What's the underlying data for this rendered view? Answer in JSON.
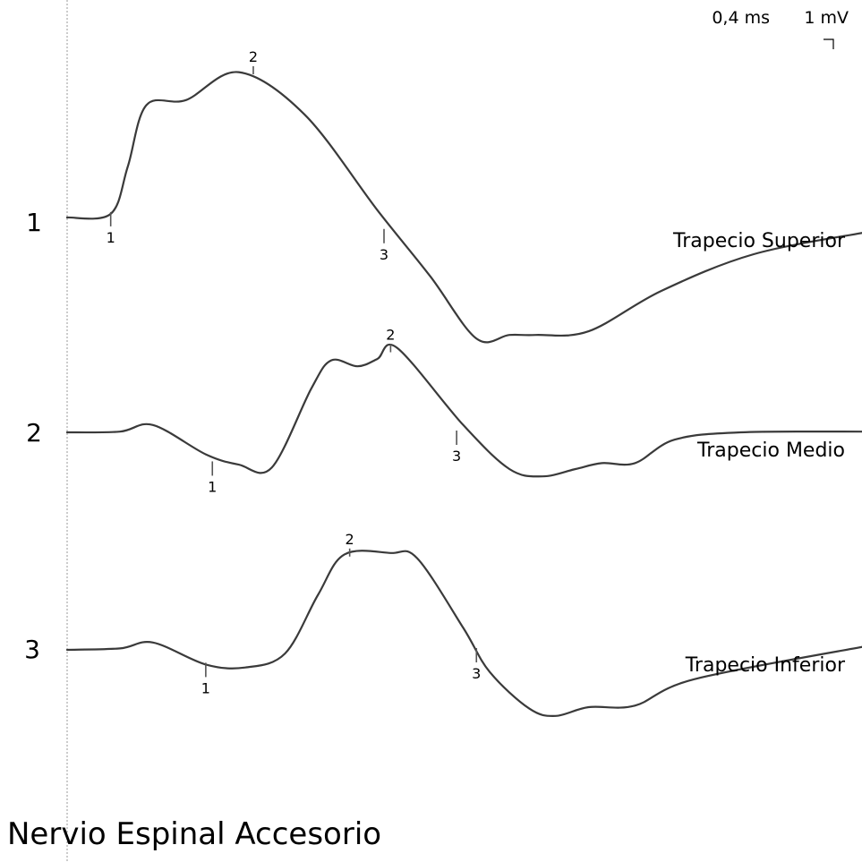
{
  "title": "Nervio Espinal Accesorio",
  "scale": {
    "time": "0,4 ms",
    "amplitude": "1 mV"
  },
  "colors": {
    "trace": "#3a3a3a",
    "text": "#000000"
  },
  "chart_data": {
    "type": "line",
    "x_unit": "ms",
    "y_unit": "mV",
    "series": [
      {
        "number": "1",
        "name": "Trapecio Superior",
        "points": [
          [
            0,
            0
          ],
          [
            0.33,
            0.05
          ],
          [
            0.46,
            0.7
          ],
          [
            0.6,
            1.53
          ],
          [
            0.9,
            1.6
          ],
          [
            1.3,
            1.98
          ],
          [
            1.8,
            1.4
          ],
          [
            2.35,
            0.1
          ],
          [
            2.75,
            -0.8
          ],
          [
            3.1,
            -1.65
          ],
          [
            3.35,
            -1.6
          ],
          [
            3.55,
            -1.6
          ],
          [
            3.95,
            -1.55
          ],
          [
            4.5,
            -1.0
          ],
          [
            5.2,
            -0.5
          ],
          [
            6.05,
            -0.2
          ]
        ],
        "markers": [
          {
            "label": "1",
            "x": 0.33,
            "y": 0.05
          },
          {
            "label": "2",
            "x": 1.41,
            "y": 2.0
          },
          {
            "label": "3",
            "x": 2.4,
            "y": -0.18
          }
        ]
      },
      {
        "number": "2",
        "name": "Trapecio Medio",
        "points": [
          [
            0,
            0
          ],
          [
            0.4,
            0.01
          ],
          [
            0.65,
            0.1
          ],
          [
            1.05,
            -0.3
          ],
          [
            1.3,
            -0.44
          ],
          [
            1.55,
            -0.48
          ],
          [
            1.85,
            0.6
          ],
          [
            2.0,
            0.98
          ],
          [
            2.2,
            0.9
          ],
          [
            2.35,
            1.0
          ],
          [
            2.5,
            1.15
          ],
          [
            3.0,
            0.1
          ],
          [
            3.35,
            -0.5
          ],
          [
            3.6,
            -0.6
          ],
          [
            3.85,
            -0.5
          ],
          [
            4.05,
            -0.42
          ],
          [
            4.3,
            -0.42
          ],
          [
            4.6,
            -0.1
          ],
          [
            5.1,
            0.0
          ],
          [
            6.05,
            0.01
          ]
        ],
        "markers": [
          {
            "label": "1",
            "x": 1.1,
            "y": -0.42
          },
          {
            "label": "2",
            "x": 2.45,
            "y": 1.14
          },
          {
            "label": "3",
            "x": 2.95,
            "y": 0.0
          }
        ]
      },
      {
        "number": "3",
        "name": "Trapecio Inferior",
        "points": [
          [
            0,
            0
          ],
          [
            0.4,
            0.02
          ],
          [
            0.65,
            0.1
          ],
          [
            1.05,
            -0.2
          ],
          [
            1.35,
            -0.24
          ],
          [
            1.65,
            -0.05
          ],
          [
            1.9,
            0.75
          ],
          [
            2.1,
            1.3
          ],
          [
            2.45,
            1.32
          ],
          [
            2.65,
            1.25
          ],
          [
            3.0,
            0.3
          ],
          [
            3.2,
            -0.3
          ],
          [
            3.5,
            -0.8
          ],
          [
            3.7,
            -0.9
          ],
          [
            3.95,
            -0.78
          ],
          [
            4.3,
            -0.76
          ],
          [
            4.75,
            -0.4
          ],
          [
            6.05,
            0.05
          ]
        ],
        "markers": [
          {
            "label": "1",
            "x": 1.05,
            "y": -0.2
          },
          {
            "label": "2",
            "x": 2.14,
            "y": 1.32
          },
          {
            "label": "3",
            "x": 3.1,
            "y": 0.0
          }
        ]
      }
    ]
  }
}
